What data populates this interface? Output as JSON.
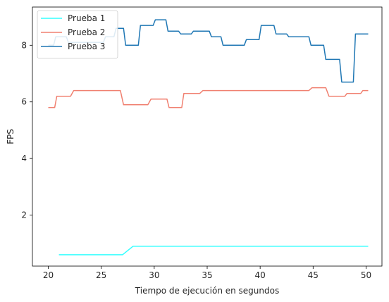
{
  "chart_data": {
    "type": "line",
    "title": "",
    "xlabel": "Tiempo de ejecución en segundos",
    "ylabel": "FPS",
    "xlim": [
      18.5,
      51.5
    ],
    "ylim": [
      0.2,
      9.35
    ],
    "xticks": [
      20,
      25,
      30,
      35,
      40,
      45,
      50
    ],
    "yticks": [
      2,
      4,
      6,
      8
    ],
    "grid": false,
    "legend_position": "top-left",
    "series": [
      {
        "name": "Prueba 1",
        "color": "#33ffff",
        "x": [
          21.0,
          27.0,
          28.0,
          50.2
        ],
        "y": [
          0.6,
          0.6,
          0.9,
          0.9
        ]
      },
      {
        "name": "Prueba 2",
        "color": "#f08070",
        "x": [
          20.0,
          20.6,
          20.8,
          22.1,
          22.4,
          26.8,
          27.1,
          29.4,
          29.7,
          31.2,
          31.4,
          32.6,
          32.8,
          34.3,
          34.6,
          44.6,
          44.9,
          46.2,
          46.5,
          48.0,
          48.2,
          49.5,
          49.7,
          50.2
        ],
        "y": [
          5.8,
          5.8,
          6.2,
          6.2,
          6.4,
          6.4,
          5.9,
          5.9,
          6.1,
          6.1,
          5.8,
          5.8,
          6.3,
          6.3,
          6.4,
          6.4,
          6.5,
          6.5,
          6.2,
          6.2,
          6.3,
          6.3,
          6.4,
          6.4
        ]
      },
      {
        "name": "Prueba 3",
        "color": "#1f77b4",
        "x": [
          20.0,
          20.5,
          20.7,
          21.7,
          21.9,
          22.9,
          23.1,
          24.0,
          24.2,
          25.2,
          25.4,
          26.2,
          26.4,
          27.1,
          27.3,
          28.5,
          28.7,
          29.9,
          30.1,
          31.1,
          31.3,
          32.3,
          32.5,
          33.5,
          33.7,
          35.2,
          35.4,
          36.3,
          36.5,
          38.5,
          38.7,
          39.9,
          40.1,
          41.3,
          41.5,
          42.5,
          42.7,
          43.7,
          43.9,
          44.6,
          44.8,
          46.0,
          46.2,
          47.5,
          47.7,
          48.8,
          49.0,
          50.2
        ],
        "y": [
          8.0,
          8.0,
          8.3,
          8.3,
          8.1,
          8.1,
          8.1,
          8.1,
          8.1,
          8.1,
          8.3,
          8.3,
          8.6,
          8.6,
          8.0,
          8.0,
          8.7,
          8.7,
          8.9,
          8.9,
          8.5,
          8.5,
          8.4,
          8.4,
          8.5,
          8.5,
          8.3,
          8.3,
          8.0,
          8.0,
          8.2,
          8.2,
          8.7,
          8.7,
          8.4,
          8.4,
          8.3,
          8.3,
          8.3,
          8.3,
          8.0,
          8.0,
          7.5,
          7.5,
          6.7,
          6.7,
          8.4,
          8.4
        ]
      }
    ]
  }
}
